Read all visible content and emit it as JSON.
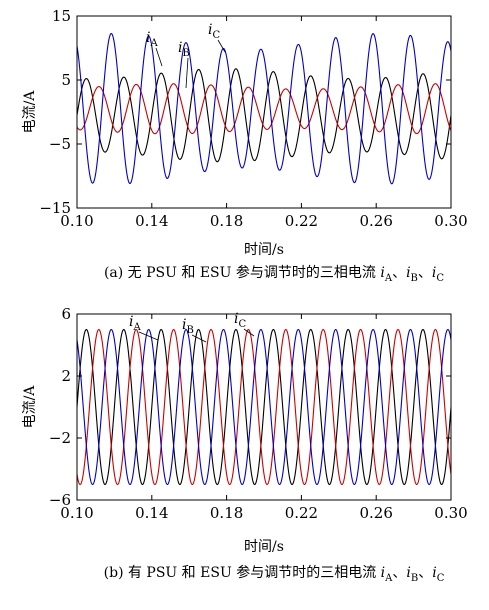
{
  "chart_data": [
    {
      "type": "line",
      "caption": "(a) 无 PSU 和 ESU 参与调节时的三相电流 iA、iB、iC",
      "caption_prefix": "(a) 无 PSU 和 ESU 参与调节时的三相电流 ",
      "xlabel": "时间/s",
      "ylabel": "电流/A",
      "xlim": [
        0.1,
        0.3
      ],
      "ylim": [
        -15,
        15
      ],
      "xticks": [
        "0.10",
        "0.14",
        "0.18",
        "0.22",
        "0.26",
        "0.30"
      ],
      "yticks": [
        "15",
        "5",
        "−5",
        "−15"
      ],
      "frequency_hz": 50,
      "series": [
        {
          "name": "iA",
          "var": "i",
          "sub": "A",
          "color": "#000000",
          "amplitude": 6.5,
          "offset": -0.5,
          "phase_deg": 0
        },
        {
          "name": "iB",
          "var": "i",
          "sub": "B",
          "color": "#cc0000",
          "amplitude": 3.5,
          "offset": 0.5,
          "phase_deg": -120
        },
        {
          "name": "iC",
          "var": "i",
          "sub": "C",
          "color": "#0000cc",
          "amplitude": 10.5,
          "offset": 0.5,
          "phase_deg": 120
        }
      ]
    },
    {
      "type": "line",
      "caption": "(b) 有 PSU 和 ESU 参与调节时的三相电流 iA、iB、iC",
      "caption_prefix": "(b) 有 PSU 和 ESU 参与调节时的三相电流 ",
      "xlabel": "时间/s",
      "ylabel": "电流/A",
      "xlim": [
        0.1,
        0.3
      ],
      "ylim": [
        -6,
        6
      ],
      "xticks": [
        "0.10",
        "0.14",
        "0.18",
        "0.22",
        "0.26",
        "0.30"
      ],
      "yticks": [
        "6",
        "2",
        "−2",
        "−6"
      ],
      "frequency_hz": 50,
      "series": [
        {
          "name": "iA",
          "var": "i",
          "sub": "A",
          "color": "#000000",
          "amplitude": 5.0,
          "offset": 0,
          "phase_deg": 0
        },
        {
          "name": "iB",
          "var": "i",
          "sub": "B",
          "color": "#cc0000",
          "amplitude": 5.0,
          "offset": 0,
          "phase_deg": -120
        },
        {
          "name": "iC",
          "var": "i",
          "sub": "C",
          "color": "#0000cc",
          "amplitude": 5.0,
          "offset": 0,
          "phase_deg": 120
        }
      ]
    }
  ]
}
